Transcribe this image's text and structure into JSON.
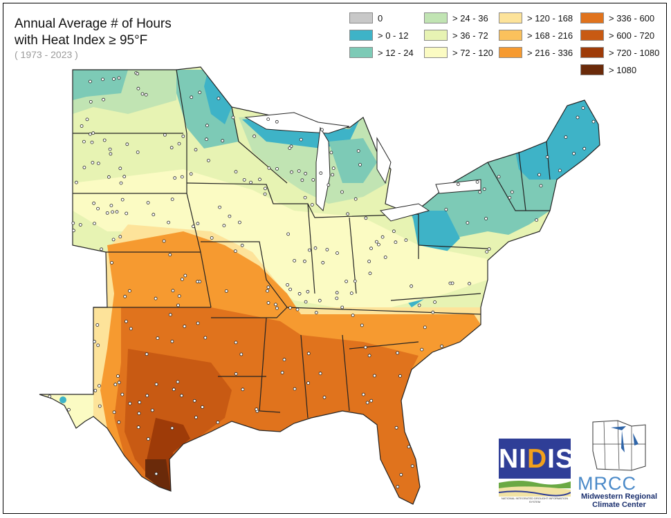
{
  "title": {
    "line1": "Annual Average # of Hours",
    "line2": "with Heat Index ≥ 95°F",
    "period": "( 1973 - 2023 )"
  },
  "legend": {
    "items": [
      {
        "label": "0",
        "color": "#c8c8c8"
      },
      {
        "label": "> 0 - 12",
        "color": "#3eb3c7"
      },
      {
        "label": "> 12 - 24",
        "color": "#7dcab6"
      },
      {
        "label": "> 24 - 36",
        "color": "#c1e4b3"
      },
      {
        "label": "> 36 - 72",
        "color": "#e7f3b3"
      },
      {
        "label": "> 72 - 120",
        "color": "#fbfbc3"
      },
      {
        "label": "> 120 - 168",
        "color": "#fde39a"
      },
      {
        "label": "> 168 - 216",
        "color": "#fbc15c"
      },
      {
        "label": "> 216 - 336",
        "color": "#f69a30"
      },
      {
        "label": "> 336 - 600",
        "color": "#e0731d"
      },
      {
        "label": "> 600 - 720",
        "color": "#c85a13"
      },
      {
        "label": "> 720 - 1080",
        "color": "#9e3b08"
      },
      {
        "label": "> 1080",
        "color": "#6a2a0a"
      }
    ]
  },
  "map": {
    "region": "Eastern and Central United States",
    "style": "filled contours by heat-index hours with state boundaries and station dots",
    "background_color": "#ffffff",
    "boundary_color": "#222222",
    "station_color": "#ffffff"
  },
  "logos": {
    "nidis": {
      "text_main": "NI",
      "text_accent": "D",
      "text_end": "IS",
      "tagline": "NATIONAL INTEGRATED DROUGHT INFORMATION SYSTEM",
      "icon": "nidis-landscape-logo"
    },
    "mrcc": {
      "letters": "MRCC",
      "line1": "Midwestern Regional",
      "line2": "Climate Center",
      "icon": "midwest-states-outline-logo"
    }
  }
}
